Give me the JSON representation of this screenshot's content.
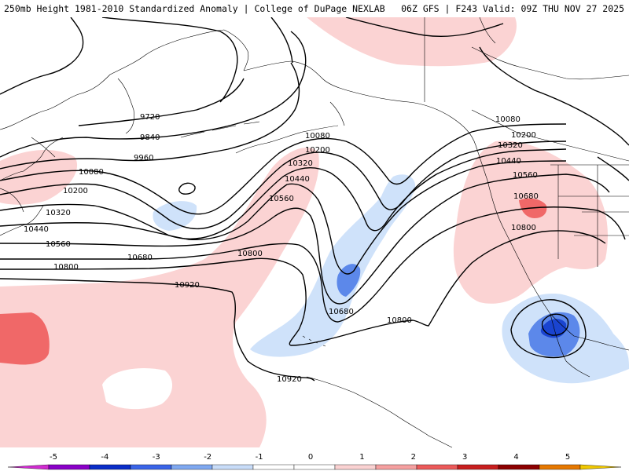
{
  "header": {
    "left": "250mb Height 1981-2010 Standardized Anomaly | College of DuPage NEXLAB",
    "right": "06Z GFS | F243 Valid: 09Z THU NOV 27 2025"
  },
  "contour_labels": {
    "c9720": "9720",
    "c9840": "9840",
    "c9960": "9960",
    "c10080_w": "10080",
    "c10080_n": "10080",
    "c10080_e": "10080",
    "c10200_w": "10200",
    "c10200_n": "10200",
    "c10200_e": "10200",
    "c10320_w": "10320",
    "c10320_n": "10320",
    "c10320_e": "10320",
    "c10440_w": "10440",
    "c10440_n": "10440",
    "c10440_e": "10440",
    "c10560_w": "10560",
    "c10560_n": "10560",
    "c10560_e": "10560",
    "c10680_w": "10680",
    "c10680_s": "10680",
    "c10680_e": "10680",
    "c10800_w": "10800",
    "c10800_n": "10800",
    "c10800_s": "10800",
    "c10800_e": "10800",
    "c10920_w": "10920",
    "c10920_s": "10920"
  },
  "colorbar": {
    "ticks": [
      "-5",
      "-4",
      "-3",
      "-2",
      "-1",
      "0",
      "1",
      "2",
      "3",
      "4",
      "5"
    ],
    "colors": [
      "#d12bd1",
      "#8a00c8",
      "#0a2dc8",
      "#3a64e8",
      "#7fa8f0",
      "#c8dcf8",
      "#ffffff",
      "#ffffff",
      "#fad2d2",
      "#f5a0a0",
      "#ec5a5a",
      "#c81e1e",
      "#8c0000",
      "#e67800",
      "#f0c800"
    ]
  },
  "shading_colors": {
    "pos1": "#fbd3d3",
    "pos2": "#f06868",
    "neg1": "#cfe2fa",
    "neg2": "#5c88ea",
    "neg3": "#1a44d0"
  }
}
